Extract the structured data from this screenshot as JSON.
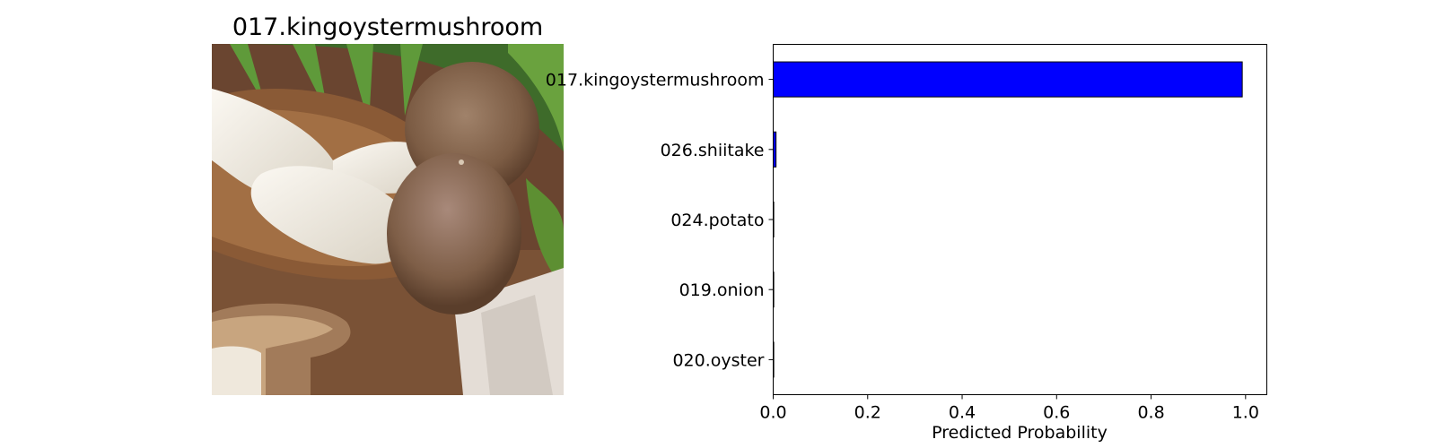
{
  "image_panel": {
    "title": "017.kingoystermushroom",
    "image_subject": "king oyster mushrooms"
  },
  "chart_data": {
    "type": "bar",
    "orientation": "horizontal",
    "categories": [
      "017.kingoystermushroom",
      "026.shiitake",
      "024.potato",
      "019.onion",
      "020.oyster"
    ],
    "values": [
      0.993,
      0.006,
      0.0005,
      0.0005,
      0.0003
    ],
    "xlabel": "Predicted Probability",
    "ylabel": "",
    "xlim": [
      0,
      1.045
    ],
    "xticks": [
      "0.0",
      "0.2",
      "0.4",
      "0.6",
      "0.8",
      "1.0"
    ],
    "bar_color": "#0000ff",
    "bar_edge_color": "#000000",
    "grid": false
  }
}
